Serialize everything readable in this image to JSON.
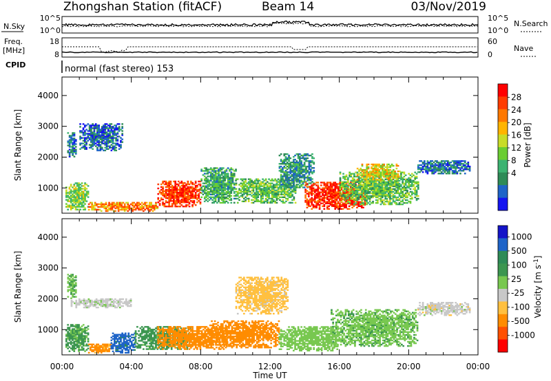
{
  "header": {
    "station": "Zhongshan Station (fitACF)",
    "beam": "Beam 14",
    "date": "03/Nov/2019"
  },
  "top_panel": {
    "left_label": "N.Sky",
    "right_label": "N.Search",
    "left_ticks": [
      "10^5",
      "10^0"
    ],
    "right_ticks": [
      "10^5",
      "10^0"
    ]
  },
  "freq_panel": {
    "left_label_1": "Freq.",
    "left_label_2": "[MHz]",
    "right_label": "Nave",
    "left_ticks": [
      "18",
      "8"
    ],
    "right_ticks": [
      "60",
      "0"
    ]
  },
  "cpid": {
    "label": "CPID",
    "text": "normal (fast stereo) 153"
  },
  "colors": {
    "power": [
      "#1414f0",
      "#1e64c8",
      "#2e8b57",
      "#3cb371",
      "#6acd32",
      "#c8dc28",
      "#ffb400",
      "#ff7800",
      "#ff3c00",
      "#ff0000"
    ],
    "velocity": [
      "#ff0000",
      "#ff5000",
      "#ff8c00",
      "#ffc040",
      "#c8c8c8",
      "#78c850",
      "#3c9650",
      "#2e8b57",
      "#1e64c8",
      "#1414c8"
    ]
  },
  "chart_data": [
    {
      "type": "heatmap",
      "title": "",
      "xlabel": "Time UT",
      "ylabel": "Slant Range [km]",
      "colorbar_label": "Power [dB]",
      "colorbar_ticks": [
        "28",
        "24",
        "20",
        "16",
        "12",
        "8",
        "4"
      ],
      "x_ticks": [
        "00:00",
        "04:00",
        "08:00",
        "12:00",
        "16:00",
        "20:00",
        "00:00"
      ],
      "y_ticks": [
        "1000",
        "2000",
        "3000",
        "4000"
      ],
      "xlim": [
        0,
        24
      ],
      "ylim": [
        180,
        4600
      ],
      "regions": [
        {
          "t": [
            0.2,
            1.5
          ],
          "r": [
            280,
            1150
          ],
          "v": 14
        },
        {
          "t": [
            1.5,
            5.5
          ],
          "r": [
            230,
            520
          ],
          "v": 22
        },
        {
          "t": [
            5.5,
            8.0
          ],
          "r": [
            380,
            1200
          ],
          "v": 26
        },
        {
          "t": [
            8.0,
            10.0
          ],
          "r": [
            500,
            1650
          ],
          "v": 10
        },
        {
          "t": [
            10.0,
            13.5
          ],
          "r": [
            500,
            1300
          ],
          "v": 12
        },
        {
          "t": [
            12.5,
            14.5
          ],
          "r": [
            1000,
            2100
          ],
          "v": 8
        },
        {
          "t": [
            14.0,
            17.5
          ],
          "r": [
            300,
            1200
          ],
          "v": 27
        },
        {
          "t": [
            16.0,
            20.5
          ],
          "r": [
            450,
            1500
          ],
          "v": 12
        },
        {
          "t": [
            17.0,
            19.5
          ],
          "r": [
            1250,
            1750
          ],
          "v": 18
        },
        {
          "t": [
            20.5,
            23.5
          ],
          "r": [
            1450,
            1900
          ],
          "v": 6
        },
        {
          "t": [
            0.3,
            0.8
          ],
          "r": [
            2000,
            2800
          ],
          "v": 6
        },
        {
          "t": [
            1.0,
            3.5
          ],
          "r": [
            2200,
            3100
          ],
          "v": 5
        }
      ]
    },
    {
      "type": "heatmap",
      "title": "",
      "xlabel": "Time UT",
      "ylabel": "Slant Range [km]",
      "colorbar_label": "Velocity [m s^-1]",
      "colorbar_ticks": [
        "1000",
        "500",
        "100",
        "25",
        "-25",
        "-100",
        "-500",
        "-1000"
      ],
      "x_ticks": [
        "00:00",
        "04:00",
        "08:00",
        "12:00",
        "16:00",
        "20:00",
        "00:00"
      ],
      "y_ticks": [
        "1000",
        "2000",
        "3000",
        "4000"
      ],
      "xlim": [
        0,
        24
      ],
      "ylim": [
        180,
        4600
      ],
      "regions": [
        {
          "t": [
            0.2,
            1.5
          ],
          "r": [
            280,
            1150
          ],
          "v": 120
        },
        {
          "t": [
            1.5,
            2.8
          ],
          "r": [
            230,
            520
          ],
          "v": -150
        },
        {
          "t": [
            2.8,
            4.2
          ],
          "r": [
            230,
            900
          ],
          "v": 700
        },
        {
          "t": [
            4.2,
            7.5
          ],
          "r": [
            350,
            1100
          ],
          "v": 150
        },
        {
          "t": [
            5.5,
            9.5
          ],
          "r": [
            350,
            1100
          ],
          "v": -200
        },
        {
          "t": [
            8.5,
            12.5
          ],
          "r": [
            400,
            1300
          ],
          "v": -300
        },
        {
          "t": [
            10.0,
            13.0
          ],
          "r": [
            1500,
            2700
          ],
          "v": -50
        },
        {
          "t": [
            12.5,
            16.0
          ],
          "r": [
            300,
            1100
          ],
          "v": 60
        },
        {
          "t": [
            15.5,
            20.5
          ],
          "r": [
            450,
            1650
          ],
          "v": 80
        },
        {
          "t": [
            20.5,
            23.5
          ],
          "r": [
            1450,
            1900
          ],
          "v": 0
        },
        {
          "t": [
            0.5,
            4.0
          ],
          "r": [
            1700,
            2000
          ],
          "v": 5
        },
        {
          "t": [
            0.3,
            0.8
          ],
          "r": [
            2000,
            2800
          ],
          "v": 90
        }
      ]
    }
  ]
}
